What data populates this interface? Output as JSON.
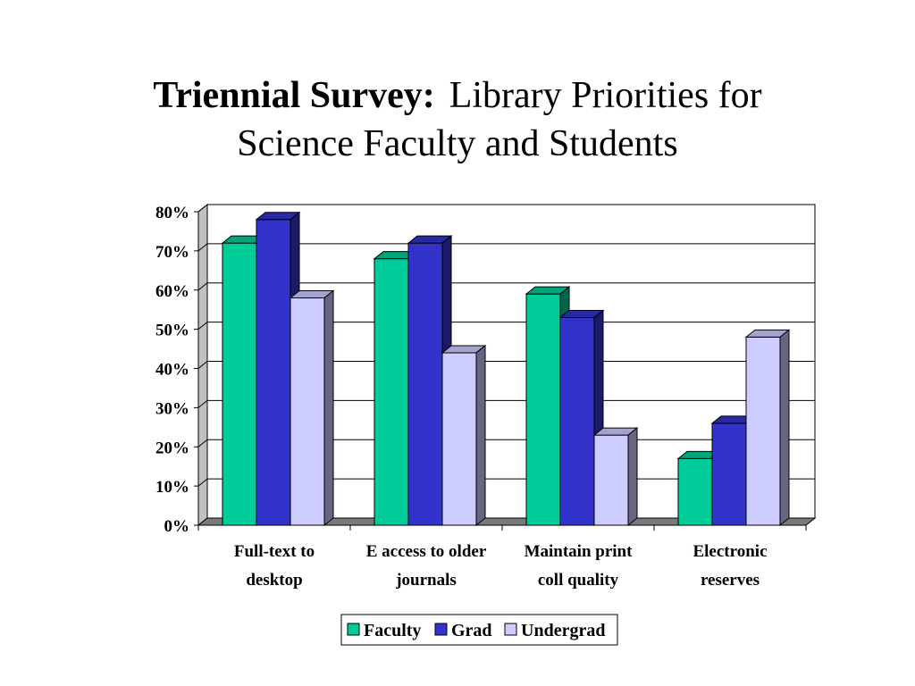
{
  "slide": {
    "title_bold": "Triennial Survey:",
    "title_line1_rest": "Library Priorities for",
    "title_line2": "Science Faculty and Students"
  },
  "chart_data": {
    "type": "bar",
    "style": "3d-clustered-column",
    "categories": [
      [
        "Full-text to",
        "desktop"
      ],
      [
        "E access to older",
        "journals"
      ],
      [
        "Maintain print",
        "coll quality"
      ],
      [
        "Electronic",
        "reserves"
      ]
    ],
    "series": [
      {
        "name": "Faculty",
        "values": [
          72,
          68,
          59,
          17
        ],
        "color": "#00cc99"
      },
      {
        "name": "Grad",
        "values": [
          78,
          72,
          53,
          26
        ],
        "color": "#3333cc"
      },
      {
        "name": "Undergrad",
        "values": [
          58,
          44,
          23,
          48
        ],
        "color": "#ccccff"
      }
    ],
    "ylim": [
      0,
      80
    ],
    "yticks": [
      "0%",
      "10%",
      "20%",
      "30%",
      "40%",
      "50%",
      "60%",
      "70%",
      "80%"
    ],
    "grid": true,
    "legend_position": "bottom"
  }
}
